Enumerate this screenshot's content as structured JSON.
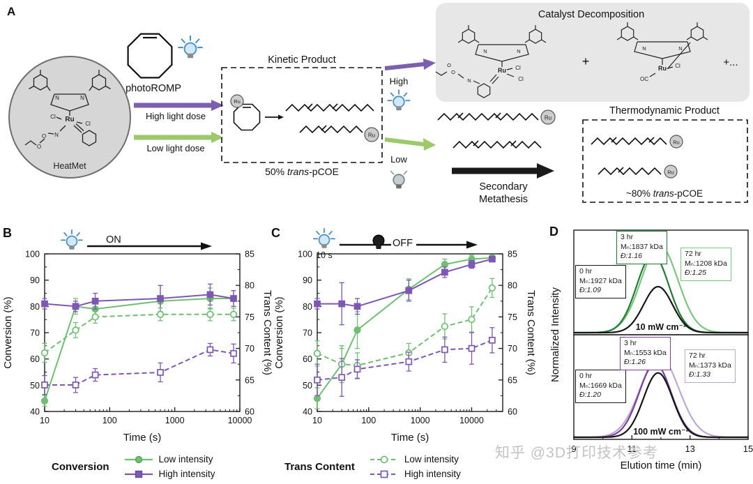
{
  "watermark": "知乎 @3D打印技术参考",
  "colors": {
    "green": "#6fbf73",
    "purple": "#7e57b5",
    "green_arrow": "#9dc96a",
    "purple_arrow": "#7c5fb0",
    "gray_box": "#e7e7e7",
    "dark_green": "#1e7d32",
    "light_green": "#79c77d",
    "dark_purple": "#7b3fa0",
    "light_purple": "#bcaad2",
    "black_curve": "#161616"
  },
  "panelA": {
    "label": "A",
    "heatmet": "HeatMet",
    "photoromp": "photoROMP",
    "high_dose": "High light dose",
    "low_dose": "Low light dose",
    "kinetic_title": "Kinetic Product",
    "kinetic_pct": "50% ",
    "kinetic_trans": "trans",
    "kinetic_suffix": "-pCOE",
    "decomp_title": "Catalyst Decomposition",
    "plus": "+",
    "plus_dots": "+...",
    "high": "High",
    "low": "Low",
    "secondary_1": "Secondary",
    "secondary_2": "Metathesis",
    "thermo_title": "Thermodynamic Product",
    "thermo_pct": "~80% ",
    "thermo_trans": "trans",
    "thermo_suffix": "-pCOE",
    "atoms": {
      "ru": "Ru",
      "cl": "Cl",
      "n": "N",
      "o": "O",
      "oc": "OC"
    }
  },
  "legend": {
    "conversion_title": "Conversion",
    "trans_title": "Trans Content",
    "low": "Low intensity",
    "high": "High intensity"
  },
  "chart_data": [
    {
      "id": "panelB",
      "type": "line",
      "panel_label": "B",
      "banner": {
        "on_label": "ON",
        "icon": "light-on"
      },
      "x_label": "Time (s)",
      "y_left_label": "Conversion (%)",
      "y_right_label": "Trans Content (%)",
      "x_scale": "log",
      "x_domain": [
        10,
        10000
      ],
      "x_ticks": [
        10,
        100,
        1000,
        10000
      ],
      "y_left_domain": [
        40,
        100
      ],
      "y_left_ticks": [
        40,
        50,
        60,
        70,
        80,
        90,
        100
      ],
      "y_right_domain": [
        60,
        85
      ],
      "y_right_ticks": [
        60,
        65,
        70,
        75,
        80,
        85
      ],
      "grid": false,
      "series": [
        {
          "id": "conv-low",
          "name": "Conversion - Low intensity",
          "axis": "left",
          "color": "#6fbf73",
          "marker": "circle",
          "filled": true,
          "dashed": false,
          "x": [
            10,
            30,
            60,
            600,
            3500,
            8000
          ],
          "y": [
            44,
            80,
            79,
            82,
            83,
            83
          ],
          "err": [
            2,
            3,
            3,
            6,
            4,
            3
          ]
        },
        {
          "id": "conv-high",
          "name": "Conversion - High intensity",
          "axis": "left",
          "color": "#7e57b5",
          "marker": "square",
          "filled": true,
          "dashed": false,
          "x": [
            10,
            30,
            60,
            600,
            3500,
            8000
          ],
          "y": [
            81,
            80,
            82,
            83,
            84.5,
            83
          ],
          "err": [
            2,
            2,
            3,
            5,
            4,
            3
          ]
        },
        {
          "id": "trans-low",
          "name": "Trans content - Low intensity",
          "axis": "right",
          "color": "#6fbf73",
          "marker": "circle",
          "filled": false,
          "dashed": true,
          "x": [
            10,
            30,
            60,
            600,
            3500,
            8000
          ],
          "y": [
            69.3,
            72.9,
            75,
            75.4,
            75.4,
            75.4
          ],
          "err": [
            1.5,
            1.2,
            1,
            1,
            1,
            1
          ]
        },
        {
          "id": "trans-high",
          "name": "Trans content - High intensity",
          "axis": "right",
          "color": "#7e57b5",
          "marker": "square",
          "filled": false,
          "dashed": true,
          "x": [
            10,
            30,
            60,
            600,
            3500,
            8000
          ],
          "y": [
            64.2,
            64.2,
            65.8,
            66.2,
            69.8,
            69.2
          ],
          "err": [
            1.5,
            1.2,
            1,
            1.5,
            1,
            1.5
          ]
        }
      ]
    },
    {
      "id": "panelC",
      "type": "line",
      "panel_label": "C",
      "banner": {
        "pre_label": "10 s",
        "off_label": "OFF",
        "icons": [
          "light-on",
          "light-off"
        ]
      },
      "x_label": "Time (s)",
      "y_left_label": "Conversion (%)",
      "y_right_label": "Trans Content (%)",
      "x_scale": "log",
      "x_domain": [
        10,
        40000
      ],
      "x_ticks": [
        10,
        100,
        1000,
        10000
      ],
      "y_left_domain": [
        40,
        100
      ],
      "y_left_ticks": [
        40,
        50,
        60,
        70,
        80,
        90,
        100
      ],
      "y_right_domain": [
        60,
        85
      ],
      "y_right_ticks": [
        60,
        65,
        70,
        75,
        80,
        85
      ],
      "grid": false,
      "series": [
        {
          "id": "conv-low",
          "name": "Conversion - Low intensity",
          "axis": "left",
          "color": "#6fbf73",
          "marker": "circle",
          "filled": true,
          "dashed": false,
          "x": [
            10,
            30,
            60,
            600,
            3000,
            10000,
            25000
          ],
          "y": [
            45,
            58,
            71,
            86.5,
            96,
            98,
            98.5
          ],
          "err": [
            4,
            7,
            7,
            4,
            2,
            1.5,
            1
          ]
        },
        {
          "id": "conv-high",
          "name": "Conversion - High intensity",
          "axis": "left",
          "color": "#7e57b5",
          "marker": "square",
          "filled": true,
          "dashed": false,
          "x": [
            10,
            30,
            60,
            600,
            3000,
            10000,
            25000
          ],
          "y": [
            81,
            81,
            80,
            86,
            93,
            96,
            98
          ],
          "err": [
            2,
            8,
            3,
            4,
            2,
            1.5,
            1
          ]
        },
        {
          "id": "trans-low",
          "name": "Trans content - Low intensity",
          "axis": "right",
          "color": "#6fbf73",
          "marker": "circle",
          "filled": false,
          "dashed": true,
          "x": [
            10,
            30,
            60,
            600,
            3000,
            10000,
            25000
          ],
          "y": [
            69.2,
            67.5,
            67.3,
            69.3,
            73.5,
            74.6,
            79.6
          ],
          "err": [
            2,
            2.5,
            2,
            1.5,
            2,
            2,
            1.5
          ]
        },
        {
          "id": "trans-high",
          "name": "Trans content - High intensity",
          "axis": "right",
          "color": "#7e57b5",
          "marker": "square",
          "filled": false,
          "dashed": true,
          "x": [
            10,
            30,
            60,
            600,
            3000,
            10000,
            25000
          ],
          "y": [
            65,
            65.4,
            66.7,
            67.9,
            69.8,
            70,
            71.3
          ],
          "err": [
            2.5,
            3,
            1.5,
            1.5,
            2,
            2.5,
            2
          ]
        }
      ]
    },
    {
      "id": "panelD",
      "type": "line",
      "panel_label": "D",
      "y_label": "Normalized Intensity",
      "x_label": "Elution time (min)",
      "x_domain": [
        9,
        15
      ],
      "x_ticks": [
        9,
        11,
        13,
        15
      ],
      "plots": [
        {
          "label": "10 mW cm⁻²",
          "curves": [
            {
              "name": "0 hr",
              "color": "#161616",
              "center": 11.9,
              "sigma": 0.5,
              "height": 0.5
            },
            {
              "name": "3 hr",
              "color": "#1e7d32",
              "center": 11.72,
              "sigma": 0.55,
              "height": 0.85
            },
            {
              "name": "72 hr",
              "color": "#79c77d",
              "center": 11.95,
              "sigma": 0.63,
              "height": 0.95
            }
          ],
          "annotations": [
            {
              "name": "0 hr",
              "mn": "Mₙ:1927 kDa",
              "d": "Đ:1.09",
              "color": "#161616"
            },
            {
              "name": "3 hr",
              "mn": "Mₙ:1837 kDa",
              "d": "Đ:1.16",
              "color": "#1e7d32"
            },
            {
              "name": "72 hr",
              "mn": "Mₙ:1208 kDa",
              "d": "Đ:1.25",
              "color": "#79c77d"
            }
          ]
        },
        {
          "label": "100 mW cm⁻²",
          "curves": [
            {
              "name": "0 hr",
              "color": "#161616",
              "center": 11.9,
              "sigma": 0.5,
              "height": 0.7
            },
            {
              "name": "3 hr",
              "color": "#7b3fa0",
              "center": 11.8,
              "sigma": 0.55,
              "height": 0.8
            },
            {
              "name": "72 hr",
              "color": "#bcaad2",
              "center": 11.95,
              "sigma": 0.66,
              "height": 0.88
            }
          ],
          "annotations": [
            {
              "name": "0 hr",
              "mn": "Mₙ:1669 kDa",
              "d": "Đ:1.20",
              "color": "#161616"
            },
            {
              "name": "3 hr",
              "mn": "Mₙ:1553 kDa",
              "d": "Đ:1.26",
              "color": "#7b3fa0"
            },
            {
              "name": "72 hr",
              "mn": "Mₙ:1373 kDa",
              "d": "Đ:1.33",
              "color": "#bcaad2"
            }
          ]
        }
      ]
    }
  ]
}
